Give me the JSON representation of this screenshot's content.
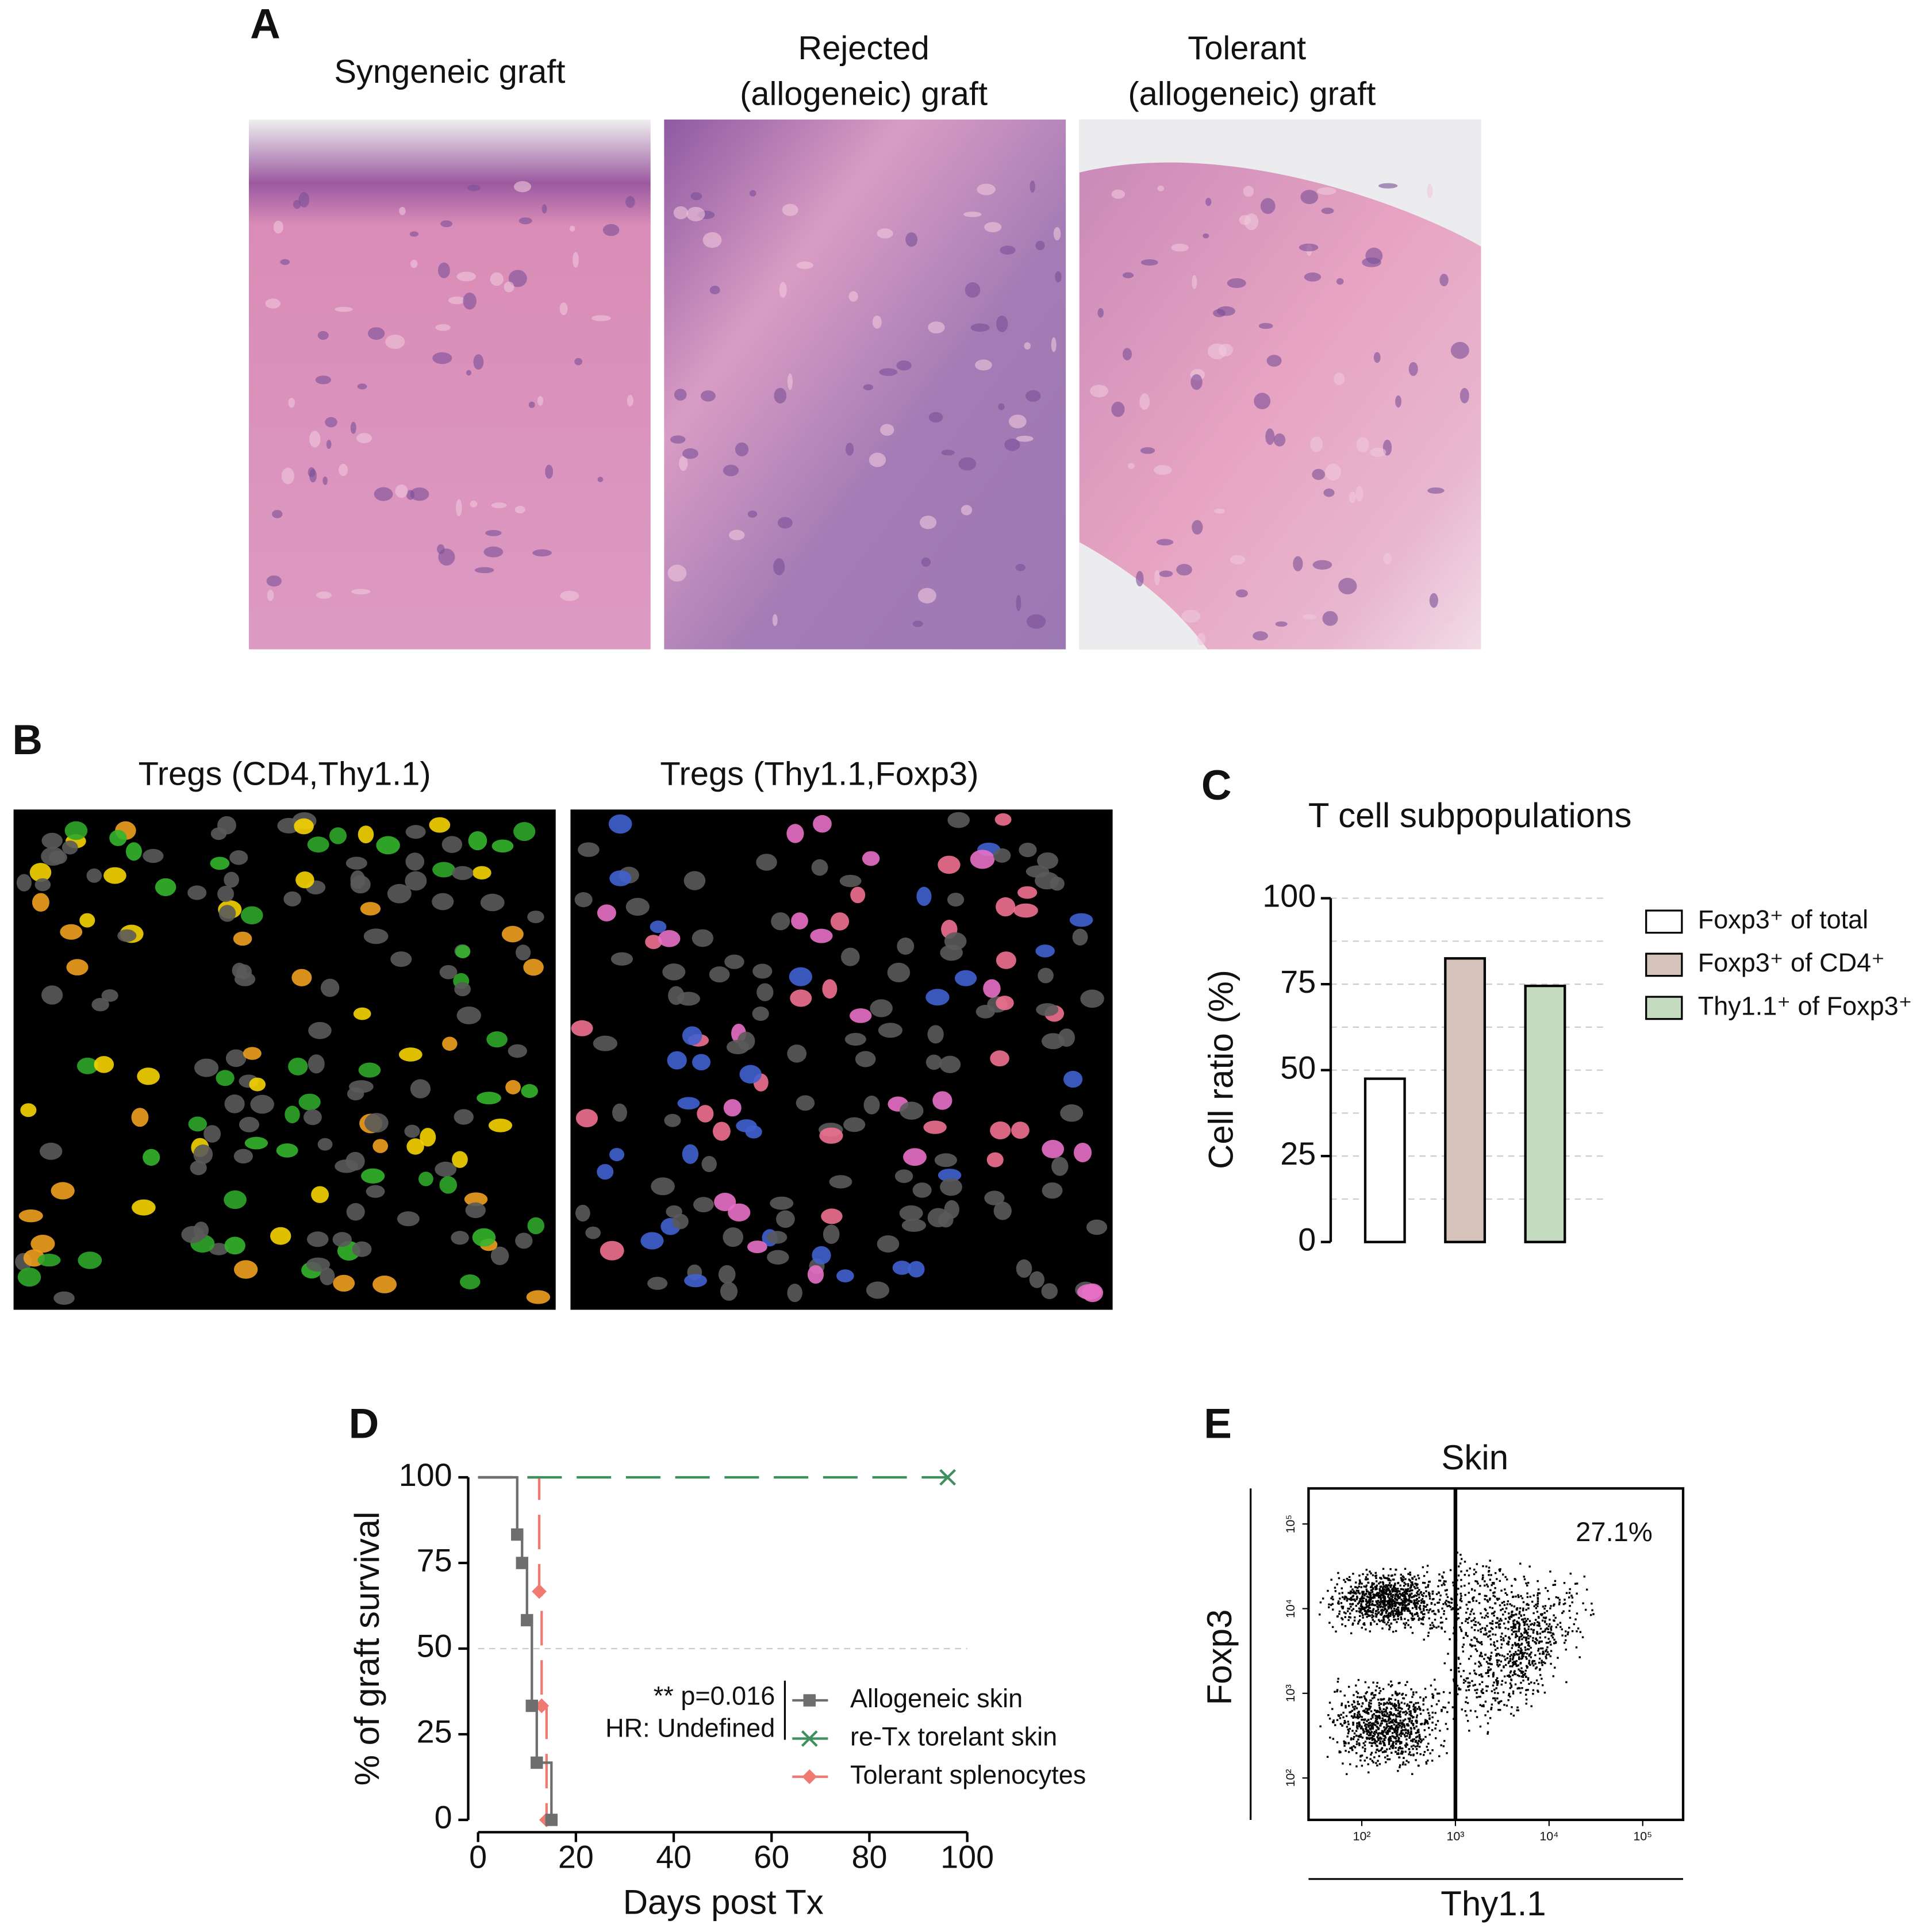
{
  "panels": {
    "A": {
      "label": "A",
      "titles": [
        [
          "Syngeneic graft"
        ],
        [
          "Rejected",
          "(allogeneic) graft"
        ],
        [
          "Tolerant",
          "(allogeneic) graft"
        ]
      ]
    },
    "B": {
      "label": "B",
      "titles": [
        "Tregs (CD4,Thy1.1)",
        "Tregs (Thy1.1,Foxp3)"
      ]
    },
    "C": {
      "label": "C"
    },
    "D": {
      "label": "D"
    },
    "E": {
      "label": "E"
    }
  },
  "chart_data": [
    {
      "type": "bar",
      "title": "T cell subpopulations",
      "y_label": "Cell ratio (%)",
      "categories": [
        null
      ],
      "series": [
        {
          "name": "Foxp3⁺ of total",
          "color": "#ffffff",
          "values": [
            47.5
          ]
        },
        {
          "name": "Foxp3⁺ of CD4⁺",
          "color": "#d5c3bb",
          "values": [
            82.5
          ]
        },
        {
          "name": "Thy1.1⁺ of Foxp3⁺",
          "color": "#c4dbbf",
          "values": [
            74.5
          ]
        }
      ],
      "ylim": [
        0,
        100
      ],
      "yticks": [
        0,
        25,
        50,
        75,
        100
      ],
      "grid": [
        12.5,
        25,
        37.5,
        50,
        62.5,
        75,
        87.5,
        100
      ],
      "legend": "right"
    },
    {
      "type": "survival",
      "x_label": "Days post Tx",
      "y_label": "% of  graft survival",
      "series": [
        {
          "name": "Tolerant splenocytes",
          "color": "#f07a72",
          "marker": "diamond",
          "dashed": true,
          "x": [
            0,
            12.5,
            13,
            14
          ],
          "values": [
            100,
            66.7,
            33.3,
            0
          ]
        },
        {
          "name": "re-Tx torelant skin",
          "color": "#3f8f5f",
          "marker": "x",
          "dashed": true,
          "x": [
            0,
            96
          ],
          "values": [
            100,
            100
          ]
        },
        {
          "name": "Allogeneic skin",
          "color": "#6e6e6e",
          "marker": "square",
          "dashed": false,
          "x": [
            0,
            8,
            9,
            10,
            11,
            12,
            15
          ],
          "values": [
            100,
            83.3,
            75,
            58.3,
            33.3,
            16.7,
            0
          ]
        }
      ],
      "legend_order": [
        2,
        1,
        0
      ],
      "annotations": [
        "** p=0.016",
        "HR: Undefined"
      ],
      "xlim": [
        0,
        100
      ],
      "xticks": [
        0,
        20,
        40,
        60,
        80,
        100
      ],
      "ylim": [
        0,
        100
      ],
      "yticks": [
        0,
        25,
        50,
        75,
        100
      ],
      "grid": [
        50
      ]
    },
    {
      "type": "flow",
      "title": "Skin",
      "x_label": "Thy1.1",
      "y_label": "Foxp3",
      "log": true,
      "xlim": [
        27,
        270000
      ],
      "ylim": [
        32,
        263000
      ],
      "xticks": [
        {
          "value": 100,
          "label": "10²"
        },
        {
          "value": 1000,
          "label": "10³"
        },
        {
          "value": 10000,
          "label": "10⁴"
        },
        {
          "value": 100000,
          "label": "10⁵"
        }
      ],
      "yticks": [
        {
          "value": 100,
          "label": "10²"
        },
        {
          "value": 1000,
          "label": "10³"
        },
        {
          "value": 10000,
          "label": "10⁴"
        },
        {
          "value": 100000,
          "label": "10⁵"
        }
      ],
      "gate_x": 1000,
      "annotation": "27.1%"
    }
  ]
}
